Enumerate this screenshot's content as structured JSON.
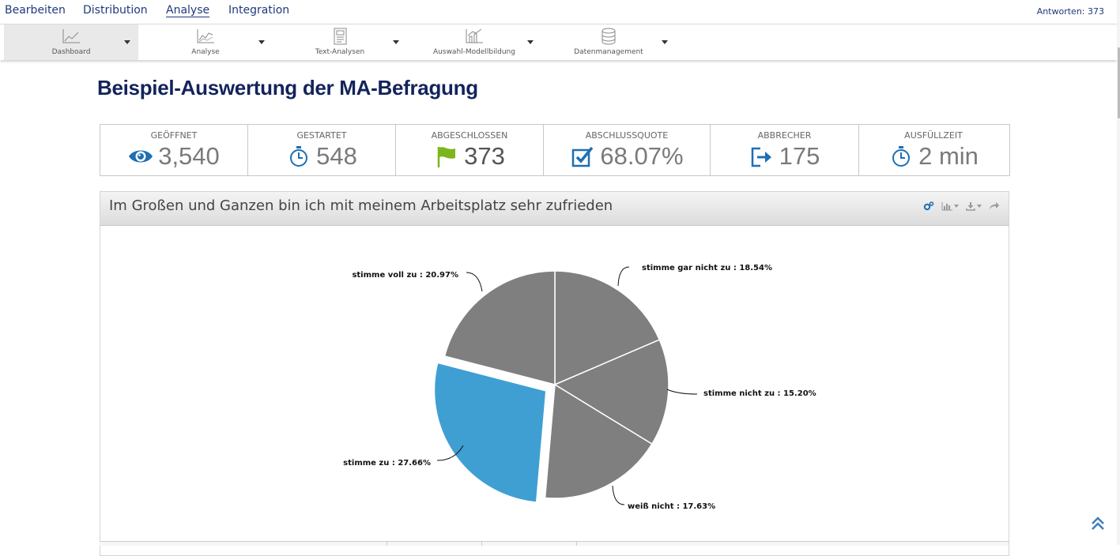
{
  "nav": {
    "items": [
      {
        "label": "Bearbeiten",
        "active": false
      },
      {
        "label": "Distribution",
        "active": false
      },
      {
        "label": "Analyse",
        "active": true
      },
      {
        "label": "Integration",
        "active": false
      }
    ],
    "responses": "Antworten: 373"
  },
  "toolbar": {
    "items": [
      {
        "label": "Dashboard",
        "icon": "line-chart-icon",
        "active": true
      },
      {
        "label": "Analyse",
        "icon": "trend-chart-icon",
        "active": false
      },
      {
        "label": "Text-Analysen",
        "icon": "document-icon",
        "active": false
      },
      {
        "label": "Auswahl-Modellbildung",
        "icon": "model-chart-icon",
        "active": false
      },
      {
        "label": "Datenmanagement",
        "icon": "database-icon",
        "active": false
      }
    ]
  },
  "page": {
    "title": "Beispiel-Auswertung der MA-Befragung"
  },
  "stats": [
    {
      "label": "GEÖFFNET",
      "value": "3,540",
      "icon": "eye-icon",
      "color": "#1e6fb3"
    },
    {
      "label": "GESTARTET",
      "value": "548",
      "icon": "stopwatch-icon",
      "color": "#1e6fb3"
    },
    {
      "label": "ABGESCHLOSSEN",
      "value": "373",
      "icon": "flag-icon",
      "color": "#7cb51c"
    },
    {
      "label": "ABSCHLUSSQUOTE",
      "value": "68.07%",
      "icon": "checkbox-icon",
      "color": "#1e6fb3"
    },
    {
      "label": "ABBRECHER",
      "value": "175",
      "icon": "exit-icon",
      "color": "#1e6fb3"
    },
    {
      "label": "AUSFÜLLZEIT",
      "value": "2 min",
      "icon": "stopwatch-icon",
      "color": "#1e6fb3"
    }
  ],
  "panel": {
    "title": "Im Großen und Ganzen bin ich mit meinem Arbeitsplatz sehr zufrieden",
    "tools": [
      "settings-icon",
      "chart-type-icon",
      "download-icon",
      "share-icon"
    ]
  },
  "chart_data": {
    "type": "pie",
    "slices": [
      {
        "name": "stimme gar nicht zu",
        "value": 18.54,
        "label": "stimme gar nicht zu : 18.54%",
        "color": "#7f7f7f",
        "exploded": false
      },
      {
        "name": "stimme nicht zu",
        "value": 15.2,
        "label": "stimme nicht zu : 15.20%",
        "color": "#7f7f7f",
        "exploded": false
      },
      {
        "name": "weiß nicht",
        "value": 17.63,
        "label": "weiß nicht : 17.63%",
        "color": "#7f7f7f",
        "exploded": false
      },
      {
        "name": "stimme zu",
        "value": 27.66,
        "label": "stimme zu : 27.66%",
        "color": "#3f9fd3",
        "exploded": true
      },
      {
        "name": "stimme voll zu",
        "value": 20.97,
        "label": "stimme voll zu : 20.97%",
        "color": "#7f7f7f",
        "exploded": false
      }
    ]
  }
}
